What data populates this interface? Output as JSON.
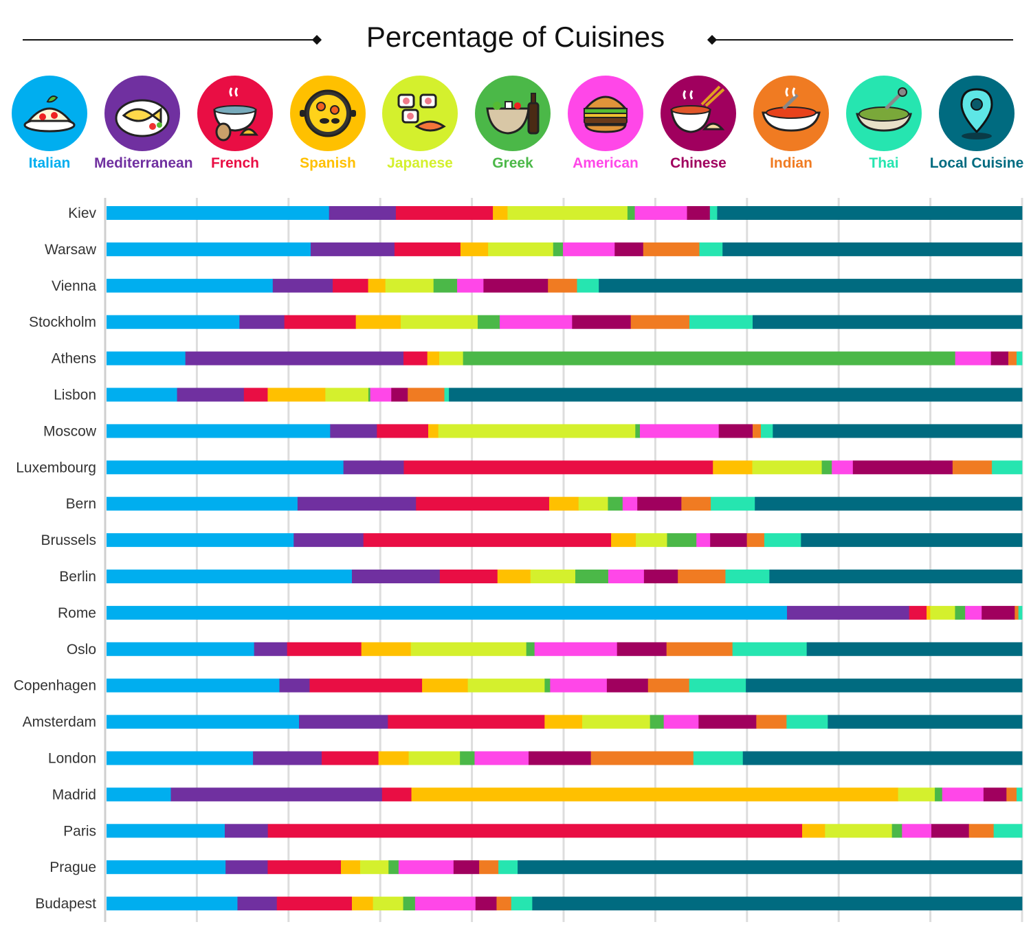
{
  "title": "Percentage of Cuisines",
  "legend": [
    {
      "label": "Italian",
      "color": "#00aeef",
      "icon": "pasta-plate-icon"
    },
    {
      "label": "Mediterranean",
      "color": "#7030a0",
      "icon": "fish-plate-icon"
    },
    {
      "label": "French",
      "color": "#e90e44",
      "icon": "soup-bread-icon"
    },
    {
      "label": "Spanish",
      "color": "#ffc000",
      "icon": "paella-pan-icon"
    },
    {
      "label": "Japanese",
      "color": "#d4f02d",
      "icon": "sushi-icon"
    },
    {
      "label": "Greek",
      "color": "#4bb848",
      "icon": "salad-bowl-icon"
    },
    {
      "label": "American",
      "color": "#ff47e8",
      "icon": "burger-icon"
    },
    {
      "label": "Chinese",
      "color": "#a0005e",
      "icon": "noodle-bowl-icon"
    },
    {
      "label": "Indian",
      "color": "#f07b22",
      "icon": "curry-bowl-icon"
    },
    {
      "label": "Thai",
      "color": "#26e5b0",
      "icon": "green-curry-bowl-icon"
    },
    {
      "label": "Local Cuisine",
      "color": "#006b80",
      "icon": "map-pin-icon"
    }
  ],
  "chart_data": {
    "type": "bar",
    "orientation": "horizontal",
    "stacked": true,
    "title": "Percentage of Cuisines",
    "xlim": [
      0,
      100
    ],
    "grid": true,
    "categories": [
      "Kiev",
      "Warsaw",
      "Vienna",
      "Stockholm",
      "Athens",
      "Lisbon",
      "Moscow",
      "Luxembourg",
      "Bern",
      "Brussels",
      "Berlin",
      "Rome",
      "Oslo",
      "Copenhagen",
      "Amsterdam",
      "London",
      "Madrid",
      "Paris",
      "Prague",
      "Budapest"
    ],
    "series": [
      {
        "name": "Italian",
        "values": [
          24.3,
          22.9,
          18.3,
          14.5,
          8.6,
          7.7,
          24.4,
          25.9,
          20.8,
          20.4,
          26.8,
          74.1,
          16.1,
          18.9,
          21.0,
          16.0,
          7.0,
          12.9,
          13.0,
          14.3
        ]
      },
      {
        "name": "Mediterranean",
        "values": [
          7.3,
          9.4,
          6.6,
          4.9,
          23.8,
          7.3,
          5.1,
          6.6,
          12.9,
          7.6,
          9.6,
          13.3,
          3.6,
          3.3,
          9.7,
          7.5,
          23.0,
          4.7,
          4.6,
          4.3
        ]
      },
      {
        "name": "French",
        "values": [
          10.6,
          7.4,
          3.9,
          7.8,
          2.6,
          2.6,
          5.6,
          33.8,
          14.5,
          27.0,
          6.3,
          1.9,
          8.1,
          12.3,
          17.1,
          6.2,
          3.2,
          58.3,
          8.0,
          8.2
        ]
      },
      {
        "name": "Spanish",
        "values": [
          1.6,
          3.1,
          1.9,
          4.9,
          1.3,
          6.3,
          1.1,
          4.3,
          3.2,
          2.7,
          3.6,
          0.4,
          5.4,
          5.0,
          4.1,
          3.3,
          53.0,
          2.5,
          2.1,
          2.3
        ]
      },
      {
        "name": "Japanese",
        "values": [
          13.1,
          7.3,
          5.3,
          8.4,
          2.6,
          4.7,
          21.5,
          7.6,
          3.2,
          3.4,
          4.9,
          2.7,
          12.6,
          8.4,
          7.4,
          5.6,
          4.0,
          7.3,
          3.1,
          3.3
        ]
      },
      {
        "name": "Greek",
        "values": [
          0.8,
          1.1,
          2.6,
          2.4,
          53.7,
          0.2,
          0.5,
          1.1,
          1.6,
          3.2,
          3.6,
          1.1,
          0.9,
          0.6,
          1.5,
          1.6,
          0.8,
          1.1,
          1.1,
          1.3
        ]
      },
      {
        "name": "American",
        "values": [
          5.7,
          5.8,
          2.9,
          7.9,
          3.9,
          2.3,
          8.6,
          2.3,
          1.6,
          1.5,
          3.9,
          1.8,
          9.0,
          6.2,
          3.8,
          5.9,
          4.5,
          3.2,
          6.0,
          6.6
        ]
      },
      {
        "name": "Chinese",
        "values": [
          2.5,
          3.2,
          7.1,
          6.4,
          1.9,
          1.8,
          3.7,
          10.9,
          4.8,
          4.0,
          3.7,
          3.6,
          5.4,
          4.5,
          6.3,
          6.8,
          2.5,
          4.1,
          2.8,
          2.3
        ]
      },
      {
        "name": "Indian",
        "values": [
          0,
          6.3,
          3.2,
          6.4,
          0.9,
          4.0,
          0.9,
          4.3,
          3.2,
          1.9,
          5.2,
          0.4,
          7.2,
          4.5,
          3.3,
          11.2,
          1.1,
          2.7,
          2.1,
          1.6
        ]
      },
      {
        "name": "Thai",
        "values": [
          0.8,
          2.6,
          2.4,
          6.9,
          0.6,
          0.5,
          1.3,
          3.3,
          4.8,
          4.0,
          4.8,
          0.4,
          8.1,
          6.2,
          4.5,
          5.4,
          0.6,
          3.1,
          2.1,
          2.3
        ]
      },
      {
        "name": "Local Cuisine",
        "values": [
          33.3,
          33.6,
          46.6,
          29.4,
          0,
          62.6,
          27.2,
          0,
          29.1,
          24.1,
          27.6,
          0,
          23.5,
          30.2,
          21.2,
          30.5,
          0,
          0,
          55.1,
          53.5
        ]
      }
    ]
  }
}
